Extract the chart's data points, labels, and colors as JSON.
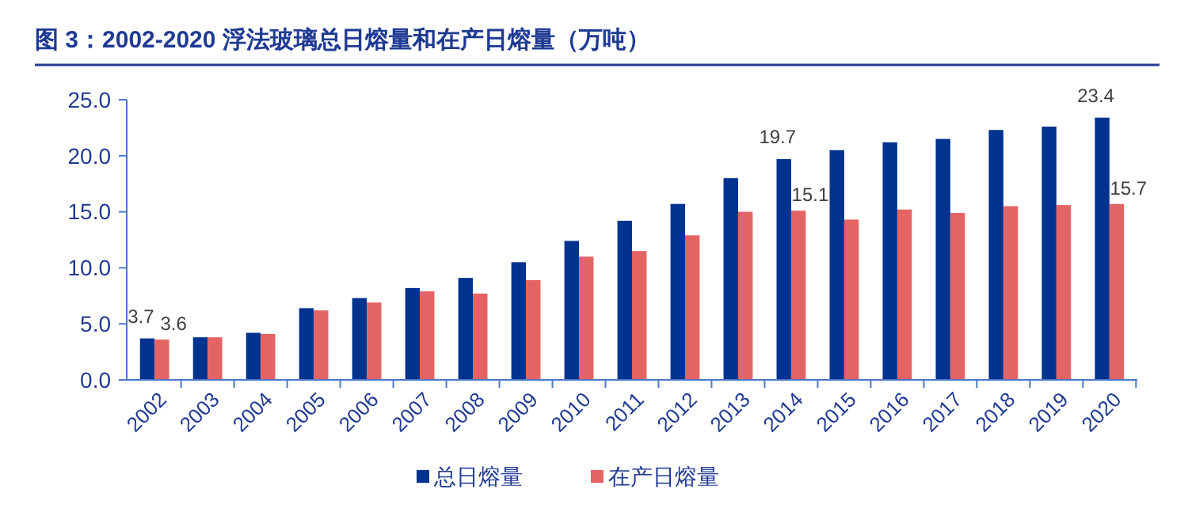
{
  "chart_data": {
    "type": "bar",
    "title": "图 3：2002-2020 浮法玻璃总日熔量和在产日熔量（万吨）",
    "categories": [
      "2002",
      "2003",
      "2004",
      "2005",
      "2006",
      "2007",
      "2008",
      "2009",
      "2010",
      "2011",
      "2012",
      "2013",
      "2014",
      "2015",
      "2016",
      "2017",
      "2018",
      "2019",
      "2020"
    ],
    "series": [
      {
        "name": "总日熔量",
        "color": "#003290",
        "values": [
          3.7,
          3.8,
          4.2,
          6.4,
          7.3,
          8.2,
          9.1,
          10.5,
          12.4,
          14.2,
          15.7,
          18.0,
          19.7,
          20.5,
          21.2,
          21.5,
          22.3,
          22.6,
          23.4
        ],
        "value_labels": [
          "3.7",
          null,
          null,
          null,
          null,
          null,
          null,
          null,
          null,
          null,
          null,
          null,
          "19.7",
          null,
          null,
          null,
          null,
          null,
          "23.4"
        ]
      },
      {
        "name": "在产日熔量",
        "color": "#e46464",
        "values": [
          3.6,
          3.8,
          4.1,
          6.2,
          6.9,
          7.9,
          7.7,
          8.9,
          11.0,
          11.5,
          12.9,
          15.0,
          15.1,
          14.3,
          15.2,
          14.9,
          15.5,
          15.6,
          15.7
        ],
        "value_labels": [
          "3.6",
          null,
          null,
          null,
          null,
          null,
          null,
          null,
          null,
          null,
          null,
          null,
          "15.1",
          null,
          null,
          null,
          null,
          null,
          "15.7"
        ]
      }
    ],
    "ylim": [
      0,
      25
    ],
    "yticks": [
      {
        "value": 0,
        "label": "0.0"
      },
      {
        "value": 5,
        "label": "5.0"
      },
      {
        "value": 10,
        "label": "10.0"
      },
      {
        "value": 15,
        "label": "15.0"
      },
      {
        "value": 20,
        "label": "20.0"
      },
      {
        "value": 25,
        "label": "25.0"
      }
    ],
    "grid": false,
    "legend": "bottom"
  }
}
